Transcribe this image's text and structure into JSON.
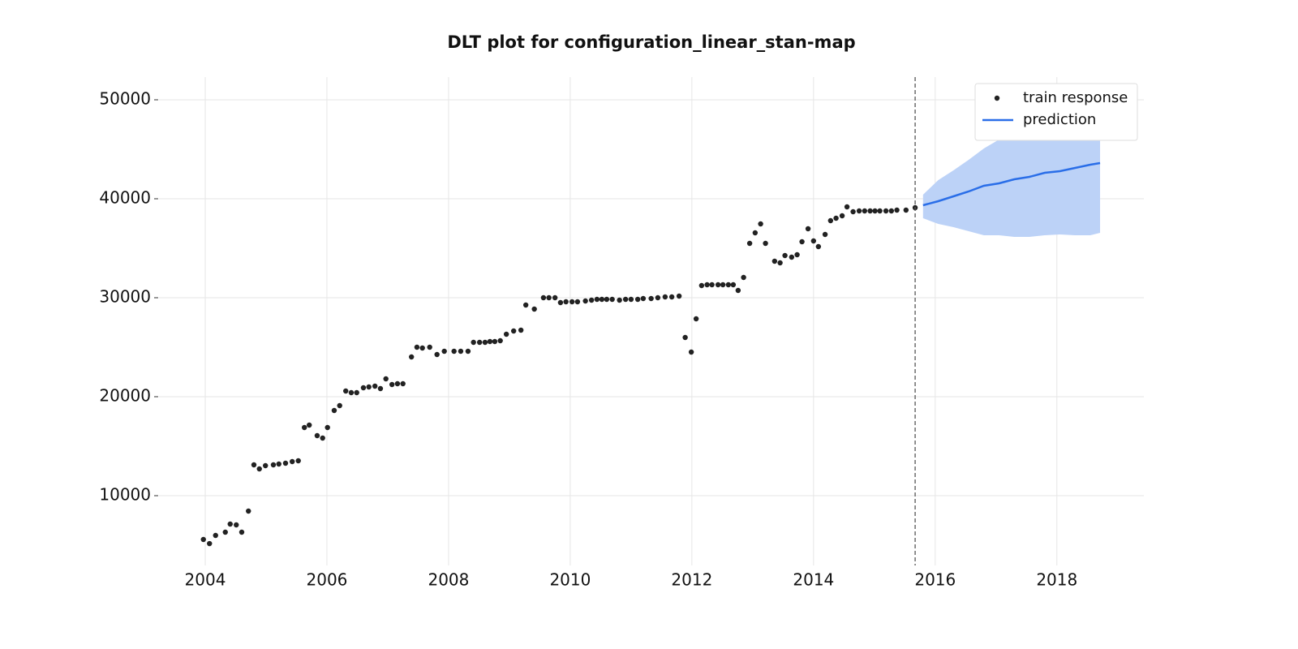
{
  "chart_data": {
    "type": "scatter-forecast",
    "title": "DLT plot for configuration_linear_stan-map",
    "xlim": [
      2003.24,
      2019.43
    ],
    "ylim": [
      2951,
      52295
    ],
    "xticks": [
      2004,
      2006,
      2008,
      2010,
      2012,
      2014,
      2016,
      2018
    ],
    "yticks": [
      10000,
      20000,
      30000,
      40000,
      50000
    ],
    "grid": true,
    "legend": "upper right",
    "vline": 2015.67,
    "series": [
      {
        "name": "train response",
        "type": "scatter",
        "color": "#222222",
        "x": [
          2003.97,
          2004.07,
          2004.17,
          2004.33,
          2004.41,
          2004.51,
          2004.6,
          2004.71,
          2004.8,
          2004.89,
          2004.99,
          2005.12,
          2005.21,
          2005.32,
          2005.43,
          2005.53,
          2005.63,
          2005.71,
          2005.84,
          2005.93,
          2006.01,
          2006.12,
          2006.21,
          2006.31,
          2006.4,
          2006.49,
          2006.6,
          2006.69,
          2006.79,
          2006.88,
          2006.97,
          2007.07,
          2007.16,
          2007.25,
          2007.39,
          2007.48,
          2007.57,
          2007.69,
          2007.81,
          2007.93,
          2008.09,
          2008.2,
          2008.32,
          2008.41,
          2008.51,
          2008.6,
          2008.68,
          2008.76,
          2008.85,
          2008.95,
          2009.07,
          2009.19,
          2009.27,
          2009.41,
          2009.56,
          2009.65,
          2009.75,
          2009.84,
          2009.93,
          2010.03,
          2010.12,
          2010.25,
          2010.35,
          2010.44,
          2010.52,
          2010.6,
          2010.69,
          2010.81,
          2010.91,
          2011.0,
          2011.11,
          2011.2,
          2011.33,
          2011.44,
          2011.56,
          2011.67,
          2011.79,
          2011.89,
          2011.99,
          2012.07,
          2012.16,
          2012.25,
          2012.33,
          2012.43,
          2012.51,
          2012.6,
          2012.68,
          2012.76,
          2012.85,
          2012.95,
          2013.04,
          2013.13,
          2013.21,
          2013.36,
          2013.45,
          2013.53,
          2013.64,
          2013.73,
          2013.81,
          2013.91,
          2014.0,
          2014.08,
          2014.19,
          2014.28,
          2014.37,
          2014.47,
          2014.55,
          2014.65,
          2014.75,
          2014.84,
          2014.93,
          2015.01,
          2015.09,
          2015.19,
          2015.28,
          2015.37,
          2015.52,
          2015.67
        ],
        "values": [
          5574,
          5160,
          5984,
          6311,
          7131,
          7049,
          6311,
          8443,
          13115,
          12705,
          13033,
          13115,
          13197,
          13279,
          13443,
          13525,
          16885,
          17131,
          16066,
          15820,
          16885,
          18607,
          19098,
          20574,
          20410,
          20410,
          20902,
          20984,
          21066,
          20820,
          21803,
          21230,
          21311,
          21311,
          24016,
          25000,
          24918,
          25000,
          24262,
          24590,
          24590,
          24590,
          24590,
          25492,
          25492,
          25492,
          25574,
          25574,
          25656,
          26311,
          26639,
          26721,
          29262,
          28852,
          30000,
          30000,
          30000,
          29508,
          29590,
          29590,
          29590,
          29672,
          29754,
          29836,
          29836,
          29836,
          29836,
          29754,
          29836,
          29836,
          29836,
          29918,
          29918,
          30000,
          30082,
          30082,
          30164,
          25984,
          24508,
          27869,
          31230,
          31311,
          31311,
          31311,
          31311,
          31311,
          31311,
          30738,
          32049,
          35492,
          36557,
          37459,
          35492,
          33689,
          33525,
          34262,
          34098,
          34344,
          35656,
          36967,
          35738,
          35164,
          36393,
          37787,
          38033,
          38279,
          39180,
          38689,
          38770,
          38770,
          38770,
          38770,
          38770,
          38770,
          38770,
          38852,
          38852,
          39098
        ]
      },
      {
        "name": "prediction",
        "type": "line",
        "color": "#2a6ee8",
        "band_color": "#bcd2f7",
        "x": [
          2015.8,
          2016.05,
          2016.3,
          2016.55,
          2016.8,
          2017.05,
          2017.3,
          2017.55,
          2017.8,
          2018.05,
          2018.3,
          2018.55,
          2018.71
        ],
        "values": [
          39344,
          39754,
          40246,
          40738,
          41311,
          41557,
          41967,
          42213,
          42623,
          42787,
          43115,
          43443,
          43607
        ],
        "upper": [
          40410,
          41885,
          42869,
          43934,
          45082,
          45984,
          46967,
          47787,
          48607,
          49344,
          49754,
          50000,
          50000
        ],
        "lower": [
          38033,
          37459,
          37131,
          36721,
          36311,
          36311,
          36148,
          36148,
          36311,
          36393,
          36311,
          36311,
          36557
        ]
      }
    ]
  }
}
